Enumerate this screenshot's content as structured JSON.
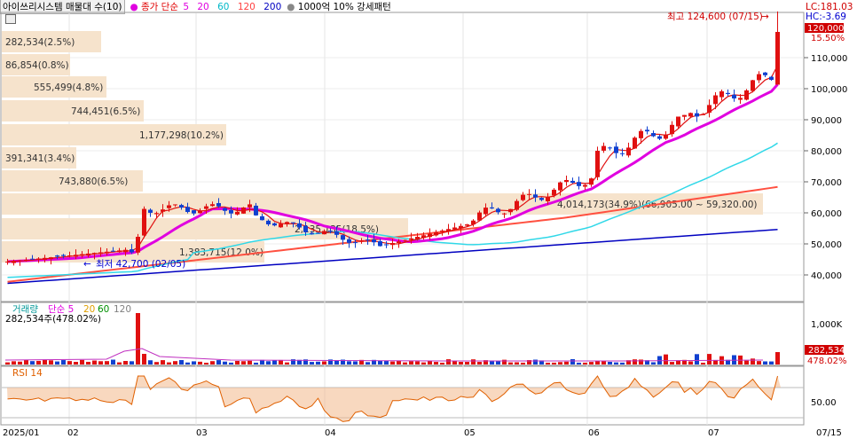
{
  "header": {
    "title": "아이쓰리시스템 매물대 수(10)",
    "ma_label": "종가 단순",
    "ma_periods": [
      "5",
      "20",
      "60",
      "120",
      "200"
    ],
    "ma_colors": [
      "#e000e0",
      "#e000e0",
      "#00c8d8",
      "#ff6040",
      "#0000c0"
    ],
    "extra": "1000억 10% 강세패턴"
  },
  "top_right": {
    "lc": "LC:181.03",
    "hc": "HC:-3.69",
    "price_tag": "120,000",
    "pct_tag": "15.50%"
  },
  "annotations": {
    "high": "최고 124,600 (07/15)",
    "low": "최저 42,700 (02/05)"
  },
  "price_axis": [
    "110,000",
    "100,000",
    "90,000",
    "80,000",
    "70,000",
    "60,000",
    "50,000",
    "40,000"
  ],
  "volume_profile": [
    {
      "label": "282,534(2.5%)",
      "w": 112
    },
    {
      "label": "86,854(0.8%)",
      "w": 77
    },
    {
      "label": "555,499(4.8%)",
      "w": 118
    },
    {
      "label": "744,451(6.5%)",
      "w": 160
    },
    {
      "label": "1,177,298(10.2%)",
      "w": 253
    },
    {
      "label": "391,341(3.4%)",
      "w": 84
    },
    {
      "label": "743,880(6.5%)",
      "w": 159
    },
    {
      "label": "4,014,173(34.9%)(66,905.00 ~ 59,320.00)",
      "w": 858
    },
    {
      "label": "2,135,135(18.5%)",
      "w": 458
    },
    {
      "label": "1,383,715(12.0%)",
      "w": 296
    }
  ],
  "volume_panel": {
    "title": "거래량",
    "ma_label": "단순 5",
    "ma_periods": [
      "20",
      "60",
      "120"
    ],
    "info": "282,534주(478.02%)",
    "axis": "1,000K",
    "value_tag": "282,534",
    "pct_tag": "478.02%"
  },
  "rsi_panel": {
    "title": "RSI 14",
    "axis": "50.00"
  },
  "x_axis": [
    "2025/01",
    "02",
    "03",
    "04",
    "05",
    "06",
    "07",
    "07/15"
  ]
}
